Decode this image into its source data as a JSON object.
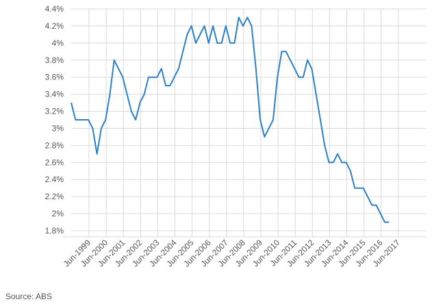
{
  "source_label": "Source: ABS",
  "colors": {
    "line": "#2a7fc9",
    "grid": "#d9d9d9",
    "axis_text": "#555555"
  },
  "chart_data": {
    "type": "line",
    "title": "",
    "xlabel": "",
    "ylabel": "",
    "ylim": [
      1.8,
      4.4
    ],
    "y_ticks": [
      "1.8%",
      "2%",
      "2.2%",
      "2.4%",
      "2.6%",
      "2.8%",
      "3%",
      "3.2%",
      "3.4%",
      "3.6%",
      "3.8%",
      "4%",
      "4.2%",
      "4.4%"
    ],
    "y_tick_values": [
      1.8,
      2.0,
      2.2,
      2.4,
      2.6,
      2.8,
      3.0,
      3.2,
      3.4,
      3.6,
      3.8,
      4.0,
      4.2,
      4.4
    ],
    "x_ticks": [
      "Jun-1999",
      "Jun-2000",
      "Jun-2001",
      "Jun-2002",
      "Jun-2003",
      "Jun-2004",
      "Jun-2005",
      "Jun-2006",
      "Jun-2007",
      "Jun-2008",
      "Jun-2009",
      "Jun-2010",
      "Jun-2011",
      "Jun-2012",
      "Jun-2013",
      "Jun-2014",
      "Jun-2015",
      "Jun-2016",
      "Jun-2017"
    ],
    "grid": true,
    "series": [
      {
        "values": [
          3.3,
          3.1,
          3.1,
          3.1,
          3.1,
          3.0,
          2.7,
          3.0,
          3.1,
          3.4,
          3.8,
          3.7,
          3.6,
          3.4,
          3.2,
          3.1,
          3.3,
          3.4,
          3.6,
          3.6,
          3.6,
          3.7,
          3.5,
          3.5,
          3.6,
          3.7,
          3.9,
          4.1,
          4.2,
          4.0,
          4.1,
          4.2,
          4.0,
          4.2,
          4.0,
          4.0,
          4.2,
          4.0,
          4.0,
          4.3,
          4.2,
          4.3,
          4.2,
          3.7,
          3.1,
          2.9,
          3.0,
          3.1,
          3.6,
          3.9,
          3.9,
          3.8,
          3.7,
          3.6,
          3.6,
          3.8,
          3.7,
          3.4,
          3.1,
          2.8,
          2.6,
          2.6,
          2.7,
          2.6,
          2.6,
          2.5,
          2.3,
          2.3,
          2.3,
          2.2,
          2.1,
          2.1,
          2.0,
          1.9,
          1.9
        ]
      }
    ]
  }
}
